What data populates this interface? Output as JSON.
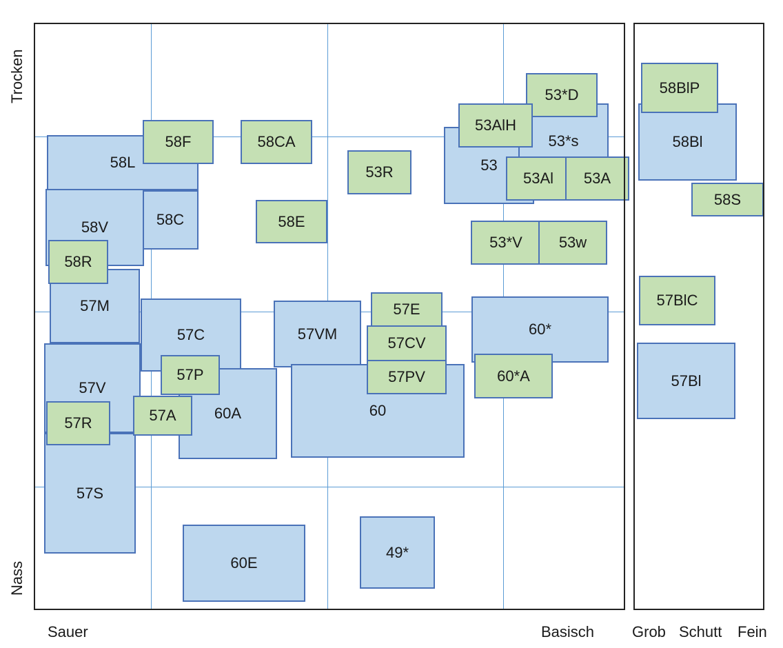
{
  "axes": {
    "y_top": "Trocken",
    "y_bottom": "Nass",
    "x_left": "Sauer",
    "x_right": "Basisch",
    "side_coarse": "Grob",
    "side_middle": "Schutt",
    "side_fine": "Fein"
  },
  "colors": {
    "blue_fill": "#bdd7ee",
    "green_fill": "#c5e0b4",
    "box_border": "#4a72b8",
    "grid": "#5b9bd5",
    "frame": "#222222"
  },
  "boxes": [
    {
      "name": "box-58L",
      "label": "58L",
      "color": "blue"
    },
    {
      "name": "box-58C",
      "label": "58C",
      "color": "blue"
    },
    {
      "name": "box-58V",
      "label": "58V",
      "color": "blue"
    },
    {
      "name": "box-57M",
      "label": "57M",
      "color": "blue"
    },
    {
      "name": "box-57V",
      "label": "57V",
      "color": "blue"
    },
    {
      "name": "box-57S",
      "label": "57S",
      "color": "blue"
    },
    {
      "name": "box-57C",
      "label": "57C",
      "color": "blue"
    },
    {
      "name": "box-60A",
      "label": "60A",
      "color": "blue"
    },
    {
      "name": "box-57VM",
      "label": "57VM",
      "color": "blue"
    },
    {
      "name": "box-60",
      "label": "60",
      "color": "blue"
    },
    {
      "name": "box-60E",
      "label": "60E",
      "color": "blue"
    },
    {
      "name": "box-49star",
      "label": "49*",
      "color": "blue"
    },
    {
      "name": "box-53",
      "label": "53",
      "color": "blue"
    },
    {
      "name": "box-53star-s",
      "label": "53*s",
      "color": "blue"
    },
    {
      "name": "box-60star",
      "label": "60*",
      "color": "blue"
    },
    {
      "name": "box-58Bl",
      "label": "58Bl",
      "color": "blue"
    },
    {
      "name": "box-57Bl",
      "label": "57Bl",
      "color": "blue"
    },
    {
      "name": "box-58F",
      "label": "58F",
      "color": "green"
    },
    {
      "name": "box-58CA",
      "label": "58CA",
      "color": "green"
    },
    {
      "name": "box-58E",
      "label": "58E",
      "color": "green"
    },
    {
      "name": "box-58R",
      "label": "58R",
      "color": "green"
    },
    {
      "name": "box-53R",
      "label": "53R",
      "color": "green"
    },
    {
      "name": "box-57E",
      "label": "57E",
      "color": "green"
    },
    {
      "name": "box-57CV",
      "label": "57CV",
      "color": "green"
    },
    {
      "name": "box-57PV",
      "label": "57PV",
      "color": "green"
    },
    {
      "name": "box-57P",
      "label": "57P",
      "color": "green"
    },
    {
      "name": "box-57A",
      "label": "57A",
      "color": "green"
    },
    {
      "name": "box-57R",
      "label": "57R",
      "color": "green"
    },
    {
      "name": "box-53star-D",
      "label": "53*D",
      "color": "green"
    },
    {
      "name": "box-53AlH",
      "label": "53AlH",
      "color": "green"
    },
    {
      "name": "box-53Al",
      "label": "53Al",
      "color": "green"
    },
    {
      "name": "box-53A",
      "label": "53A",
      "color": "green"
    },
    {
      "name": "box-53star-V",
      "label": "53*V",
      "color": "green"
    },
    {
      "name": "box-53w",
      "label": "53w",
      "color": "green"
    },
    {
      "name": "box-60star-A",
      "label": "60*A",
      "color": "green"
    },
    {
      "name": "box-58BlP",
      "label": "58BlP",
      "color": "green"
    },
    {
      "name": "box-58S",
      "label": "58S",
      "color": "green"
    },
    {
      "name": "box-57BlC",
      "label": "57BlC",
      "color": "green"
    }
  ]
}
